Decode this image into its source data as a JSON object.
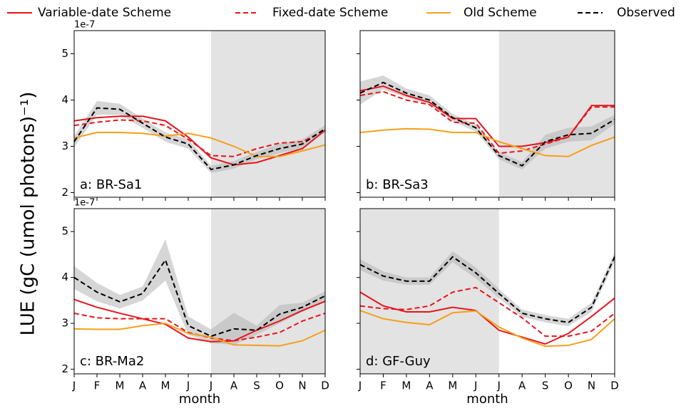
{
  "ylabel": "LUE (gC (umol photons)⁻¹)",
  "chart_data": [
    {
      "type": "line",
      "annotation": "a: BR-Sa1",
      "offset_text": "1e-7",
      "show_yticklabels": true,
      "categories": [
        null,
        null,
        null,
        null,
        null,
        null,
        null,
        null,
        null,
        null,
        null,
        null
      ],
      "ylim": [
        1.9,
        5.5
      ],
      "yticks": [
        2,
        3,
        4,
        5
      ],
      "shaded_range": [
        6,
        11
      ],
      "series": [
        {
          "name": "Variable-date Scheme",
          "color": "#e8141b",
          "dashed": false,
          "values": [
            3.55,
            3.62,
            3.65,
            3.65,
            3.55,
            3.2,
            2.75,
            2.6,
            2.65,
            2.8,
            2.95,
            3.35
          ]
        },
        {
          "name": "Fixed-date Scheme",
          "color": "#e8141b",
          "dashed": true,
          "values": [
            3.45,
            3.52,
            3.57,
            3.55,
            3.45,
            3.15,
            2.8,
            2.78,
            2.95,
            3.07,
            3.1,
            3.35
          ]
        },
        {
          "name": "Old Scheme",
          "color": "#f5a01a",
          "dashed": false,
          "values": [
            3.18,
            3.3,
            3.3,
            3.28,
            3.22,
            3.28,
            3.18,
            3.0,
            2.78,
            2.78,
            2.9,
            3.03
          ]
        },
        {
          "name": "Observed",
          "color": "#000000",
          "dashed": true,
          "values": [
            3.1,
            3.83,
            3.8,
            3.5,
            3.2,
            3.05,
            2.5,
            2.6,
            2.8,
            2.95,
            3.05,
            3.38
          ],
          "errors": [
            0.12,
            0.15,
            0.12,
            0.1,
            0.1,
            0.1,
            0.08,
            0.08,
            0.08,
            0.1,
            0.1,
            0.08
          ]
        }
      ]
    },
    {
      "type": "line",
      "annotation": "b: BR-Sa3",
      "show_yticklabels": false,
      "categories": [
        null,
        null,
        null,
        null,
        null,
        null,
        null,
        null,
        null,
        null,
        null,
        null
      ],
      "ylim": [
        1.9,
        5.5
      ],
      "yticks": [
        2,
        3,
        4,
        5
      ],
      "shaded_range": [
        6,
        11
      ],
      "series": [
        {
          "name": "Variable-date Scheme",
          "color": "#e8141b",
          "dashed": false,
          "values": [
            4.2,
            4.3,
            4.1,
            3.95,
            3.6,
            3.6,
            3.0,
            3.0,
            3.08,
            3.2,
            3.88,
            3.88
          ]
        },
        {
          "name": "Fixed-date Scheme",
          "color": "#e8141b",
          "dashed": true,
          "values": [
            4.1,
            4.18,
            4.0,
            3.9,
            3.52,
            3.5,
            2.85,
            2.9,
            3.05,
            3.2,
            3.85,
            3.85
          ]
        },
        {
          "name": "Old Scheme",
          "color": "#f5a01a",
          "dashed": false,
          "values": [
            3.3,
            3.35,
            3.38,
            3.37,
            3.3,
            3.3,
            3.1,
            2.95,
            2.8,
            2.78,
            3.02,
            3.2
          ]
        },
        {
          "name": "Observed",
          "color": "#000000",
          "dashed": true,
          "values": [
            4.15,
            4.38,
            4.15,
            4.0,
            3.62,
            3.4,
            2.8,
            2.58,
            3.1,
            3.25,
            3.28,
            3.58
          ],
          "errors": [
            0.25,
            0.15,
            0.1,
            0.1,
            0.08,
            0.08,
            0.08,
            0.08,
            0.15,
            0.15,
            0.15,
            0.1
          ]
        }
      ]
    },
    {
      "type": "line",
      "annotation": "c: BR-Ma2",
      "offset_text": "1e-7",
      "show_yticklabels": true,
      "xlabel": "month",
      "categories": [
        "J",
        "F",
        "M",
        "A",
        "M",
        "J",
        "J",
        "A",
        "S",
        "O",
        "N",
        "D"
      ],
      "ylim": [
        1.9,
        5.5
      ],
      "yticks": [
        2,
        3,
        4,
        5
      ],
      "shaded_range": [
        6,
        11
      ],
      "series": [
        {
          "name": "Variable-date Scheme",
          "color": "#e8141b",
          "dashed": false,
          "values": [
            3.52,
            3.35,
            3.22,
            3.1,
            2.98,
            2.68,
            2.6,
            2.62,
            2.85,
            3.05,
            3.28,
            3.48
          ]
        },
        {
          "name": "Fixed-date Scheme",
          "color": "#e8141b",
          "dashed": true,
          "values": [
            3.22,
            3.12,
            3.1,
            3.1,
            3.1,
            2.8,
            2.68,
            2.62,
            2.7,
            2.8,
            3.05,
            3.22
          ]
        },
        {
          "name": "Old Scheme",
          "color": "#f5a01a",
          "dashed": false,
          "values": [
            2.88,
            2.87,
            2.87,
            2.95,
            3.0,
            2.78,
            2.7,
            2.53,
            2.52,
            2.51,
            2.62,
            2.85
          ]
        },
        {
          "name": "Observed",
          "color": "#000000",
          "dashed": true,
          "values": [
            4.0,
            3.68,
            3.47,
            3.65,
            4.38,
            2.95,
            2.72,
            2.88,
            2.85,
            3.2,
            3.35,
            3.6
          ],
          "errors": [
            0.25,
            0.2,
            0.15,
            0.15,
            0.45,
            0.2,
            0.15,
            0.35,
            0.1,
            0.2,
            0.1,
            0.1
          ]
        }
      ]
    },
    {
      "type": "line",
      "annotation": "d: GF-Guy",
      "show_yticklabels": false,
      "xlabel": "month",
      "categories": [
        "J",
        "F",
        "M",
        "A",
        "M",
        "J",
        "J",
        "A",
        "S",
        "O",
        "N",
        "D"
      ],
      "ylim": [
        1.9,
        5.5
      ],
      "yticks": [
        2,
        3,
        4,
        5
      ],
      "shaded_range": [
        0,
        6
      ],
      "series": [
        {
          "name": "Variable-date Scheme",
          "color": "#e8141b",
          "dashed": false,
          "values": [
            3.68,
            3.38,
            3.25,
            3.25,
            3.35,
            3.28,
            2.85,
            2.7,
            2.55,
            2.78,
            3.15,
            3.55
          ]
        },
        {
          "name": "Fixed-date Scheme",
          "color": "#e8141b",
          "dashed": true,
          "values": [
            3.38,
            3.32,
            3.3,
            3.38,
            3.68,
            3.78,
            3.45,
            3.12,
            2.72,
            2.72,
            2.83,
            3.22
          ]
        },
        {
          "name": "Old Scheme",
          "color": "#f5a01a",
          "dashed": false,
          "values": [
            3.28,
            3.1,
            3.02,
            2.97,
            3.23,
            3.27,
            2.92,
            2.68,
            2.5,
            2.52,
            2.65,
            3.1
          ]
        },
        {
          "name": "Observed",
          "color": "#000000",
          "dashed": true,
          "values": [
            4.28,
            4.03,
            3.92,
            3.92,
            4.45,
            4.1,
            3.65,
            3.22,
            3.1,
            3.02,
            3.35,
            4.45
          ],
          "errors": [
            0.12,
            0.1,
            0.08,
            0.08,
            0.12,
            0.12,
            0.1,
            0.08,
            0.08,
            0.08,
            0.1,
            0.1
          ]
        }
      ]
    }
  ]
}
